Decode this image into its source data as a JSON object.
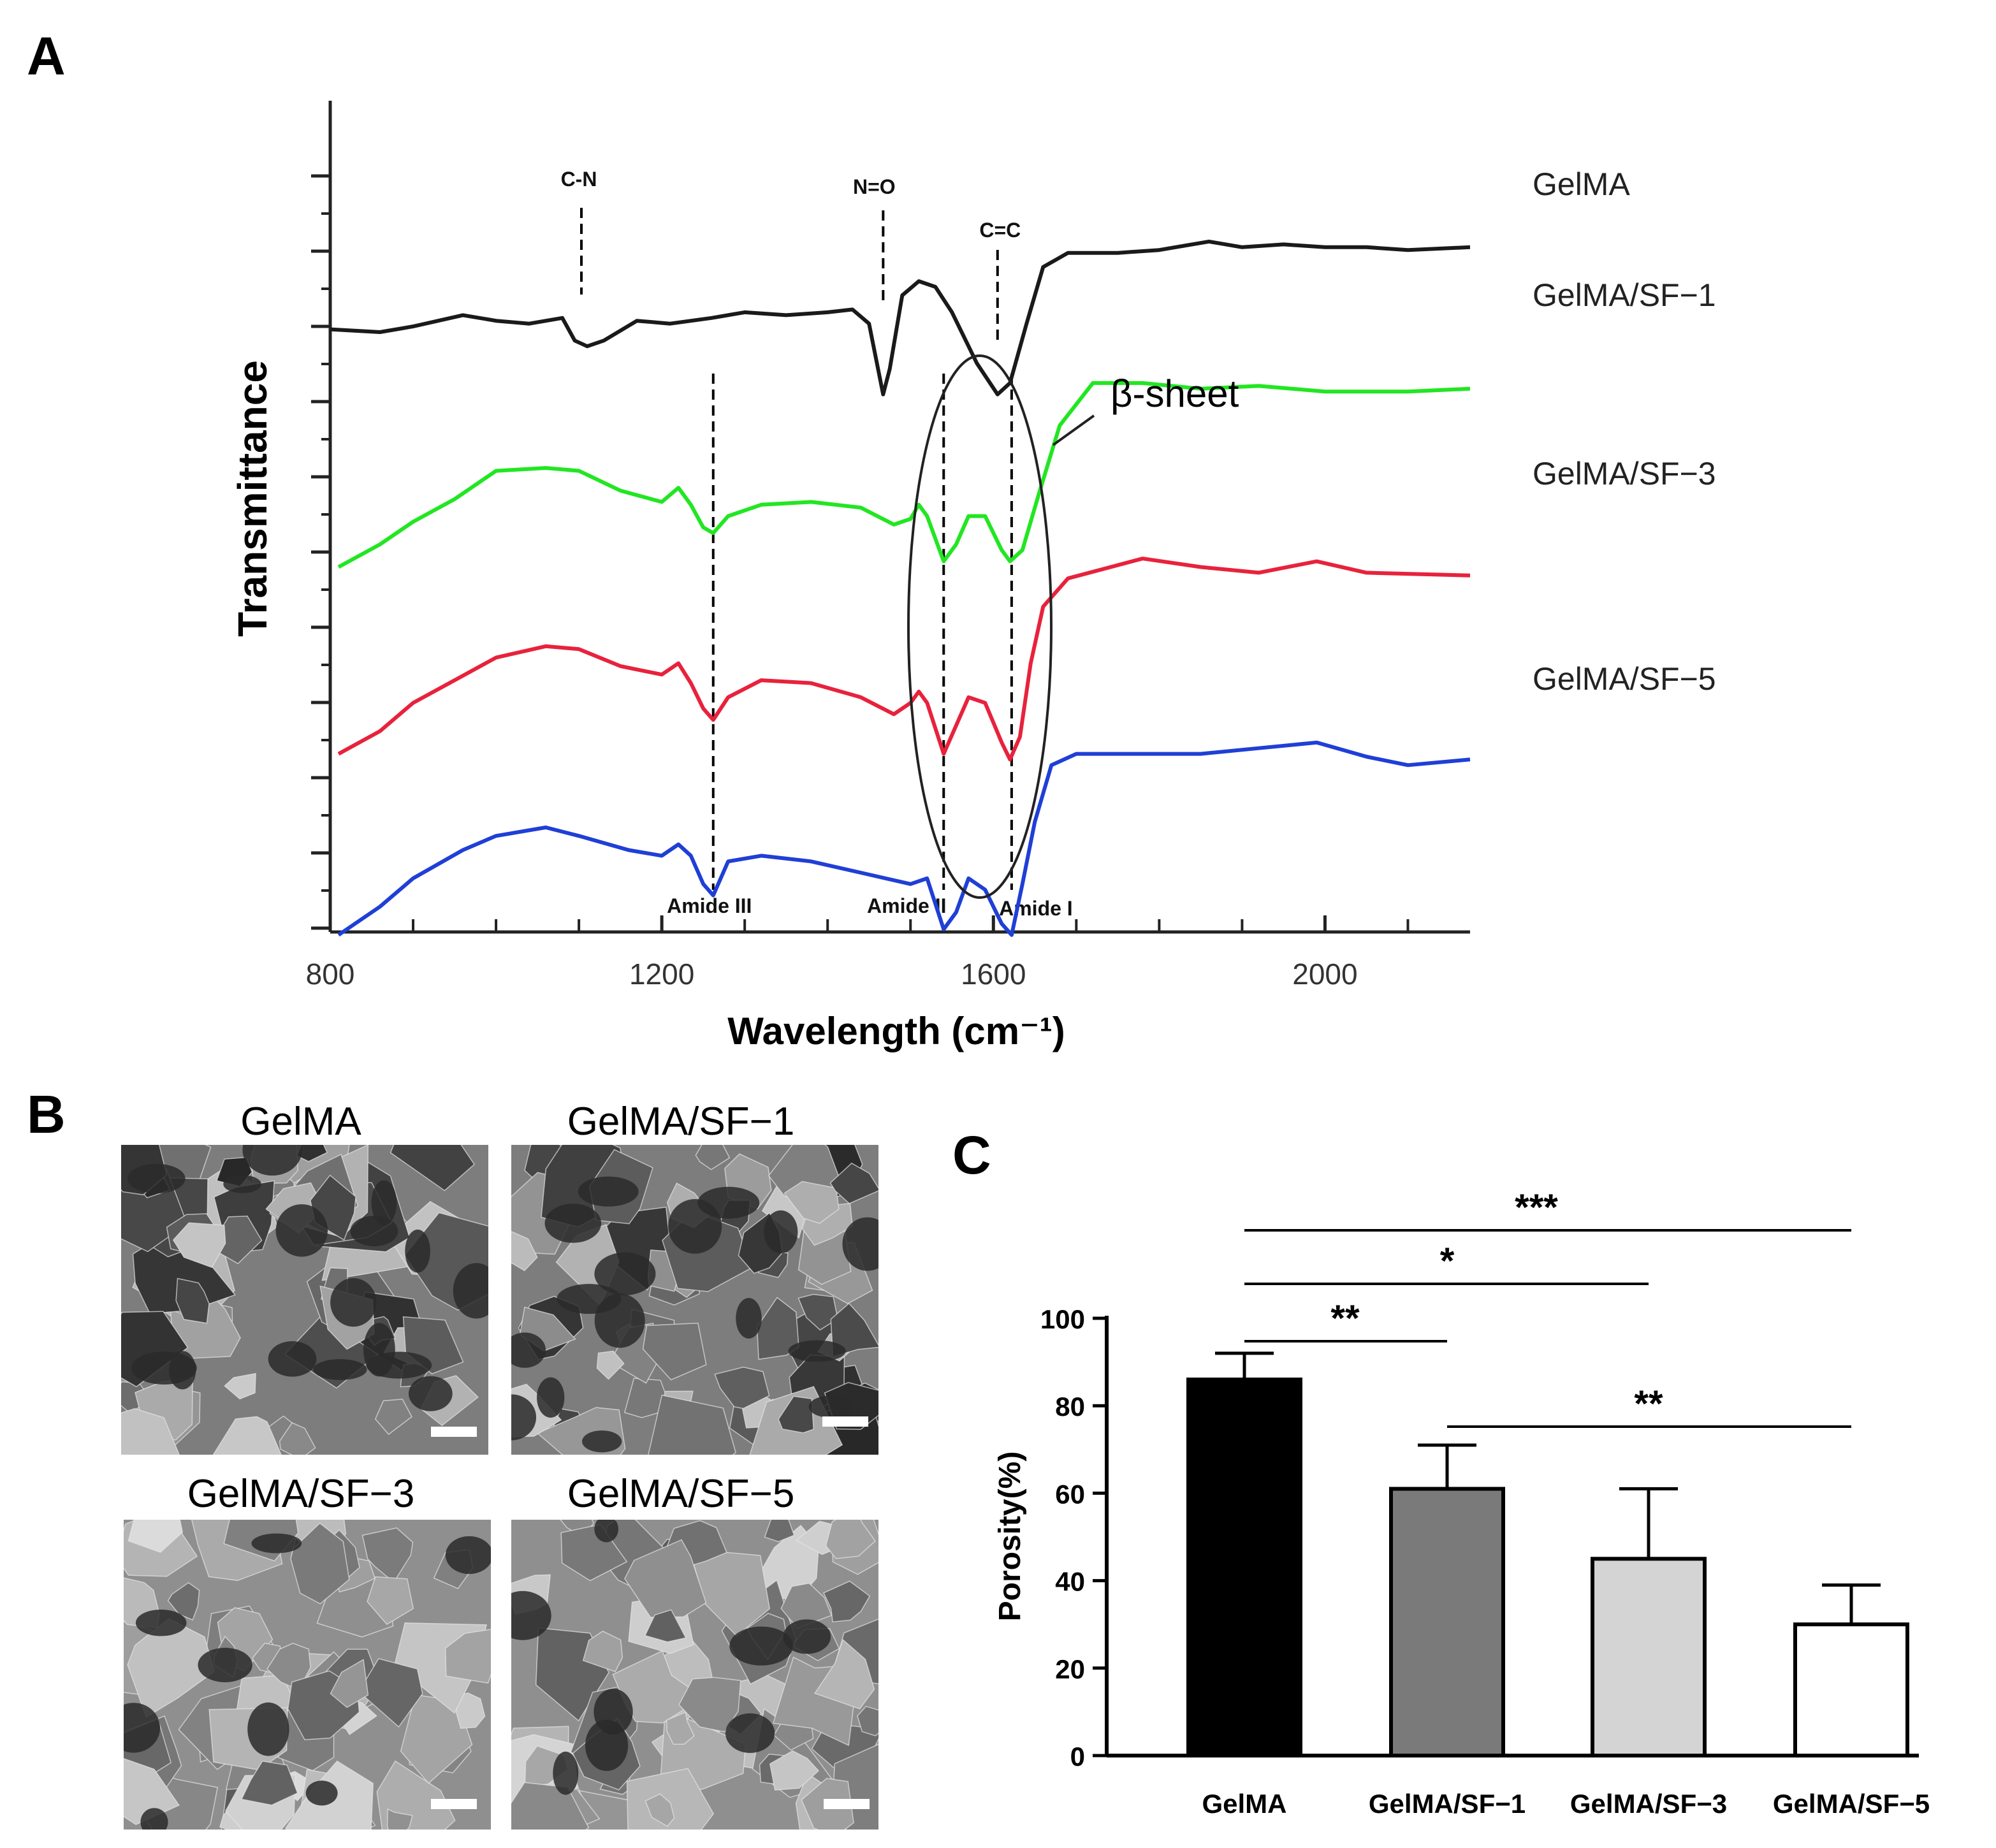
{
  "panels": {
    "A": "A",
    "B": "B",
    "C": "C"
  },
  "chart_data": [
    {
      "type": "line",
      "panel": "A",
      "xlabel": "Wavelength (cm⁻¹)",
      "ylabel": "Transmittance",
      "xlim": [
        800,
        2175
      ],
      "xticks": [
        800,
        1200,
        1600,
        2000
      ],
      "yticks_labeled": false,
      "legend_position": "right",
      "series": [
        {
          "name": "GelMA",
          "color": "#1a1a1a",
          "points": [
            [
              800,
              0.74
            ],
            [
              860,
              0.75
            ],
            [
              900,
              0.73
            ],
            [
              960,
              0.69
            ],
            [
              1000,
              0.71
            ],
            [
              1040,
              0.72
            ],
            [
              1080,
              0.7
            ],
            [
              1095,
              0.78
            ],
            [
              1110,
              0.8
            ],
            [
              1130,
              0.78
            ],
            [
              1170,
              0.71
            ],
            [
              1210,
              0.72
            ],
            [
              1260,
              0.7
            ],
            [
              1300,
              0.68
            ],
            [
              1350,
              0.69
            ],
            [
              1400,
              0.68
            ],
            [
              1430,
              0.67
            ],
            [
              1450,
              0.72
            ],
            [
              1467,
              0.97
            ],
            [
              1475,
              0.88
            ],
            [
              1490,
              0.62
            ],
            [
              1510,
              0.57
            ],
            [
              1530,
              0.59
            ],
            [
              1550,
              0.68
            ],
            [
              1580,
              0.86
            ],
            [
              1605,
              0.97
            ],
            [
              1620,
              0.93
            ],
            [
              1640,
              0.72
            ],
            [
              1660,
              0.52
            ],
            [
              1690,
              0.47
            ],
            [
              1750,
              0.47
            ],
            [
              1800,
              0.46
            ],
            [
              1860,
              0.43
            ],
            [
              1900,
              0.45
            ],
            [
              1950,
              0.44
            ],
            [
              2000,
              0.45
            ],
            [
              2050,
              0.45
            ],
            [
              2100,
              0.46
            ],
            [
              2175,
              0.45
            ]
          ]
        },
        {
          "name": "GelMA/SF−1",
          "color": "#22e622",
          "points": [
            [
              810,
              1.58
            ],
            [
              860,
              1.5
            ],
            [
              900,
              1.42
            ],
            [
              950,
              1.34
            ],
            [
              1000,
              1.24
            ],
            [
              1060,
              1.23
            ],
            [
              1100,
              1.24
            ],
            [
              1150,
              1.31
            ],
            [
              1200,
              1.35
            ],
            [
              1220,
              1.3
            ],
            [
              1235,
              1.36
            ],
            [
              1250,
              1.44
            ],
            [
              1262,
              1.46
            ],
            [
              1280,
              1.4
            ],
            [
              1320,
              1.36
            ],
            [
              1380,
              1.35
            ],
            [
              1440,
              1.37
            ],
            [
              1480,
              1.43
            ],
            [
              1500,
              1.41
            ],
            [
              1510,
              1.36
            ],
            [
              1520,
              1.4
            ],
            [
              1540,
              1.56
            ],
            [
              1555,
              1.5
            ],
            [
              1570,
              1.4
            ],
            [
              1590,
              1.4
            ],
            [
              1610,
              1.52
            ],
            [
              1620,
              1.56
            ],
            [
              1635,
              1.52
            ],
            [
              1655,
              1.32
            ],
            [
              1680,
              1.08
            ],
            [
              1720,
              0.93
            ],
            [
              1780,
              0.93
            ],
            [
              1850,
              0.95
            ],
            [
              1920,
              0.94
            ],
            [
              2000,
              0.96
            ],
            [
              2100,
              0.96
            ],
            [
              2175,
              0.95
            ]
          ]
        },
        {
          "name": "GelMA/SF−3",
          "color": "#e8223c",
          "points": [
            [
              810,
              2.24
            ],
            [
              860,
              2.16
            ],
            [
              900,
              2.06
            ],
            [
              950,
              1.98
            ],
            [
              1000,
              1.9
            ],
            [
              1060,
              1.86
            ],
            [
              1100,
              1.87
            ],
            [
              1150,
              1.93
            ],
            [
              1200,
              1.96
            ],
            [
              1220,
              1.92
            ],
            [
              1235,
              1.99
            ],
            [
              1250,
              2.08
            ],
            [
              1262,
              2.12
            ],
            [
              1280,
              2.04
            ],
            [
              1320,
              1.98
            ],
            [
              1380,
              1.99
            ],
            [
              1440,
              2.04
            ],
            [
              1480,
              2.1
            ],
            [
              1500,
              2.06
            ],
            [
              1510,
              2.02
            ],
            [
              1520,
              2.06
            ],
            [
              1540,
              2.24
            ],
            [
              1555,
              2.14
            ],
            [
              1570,
              2.04
            ],
            [
              1590,
              2.06
            ],
            [
              1610,
              2.2
            ],
            [
              1620,
              2.26
            ],
            [
              1632,
              2.18
            ],
            [
              1645,
              1.92
            ],
            [
              1660,
              1.72
            ],
            [
              1690,
              1.62
            ],
            [
              1780,
              1.55
            ],
            [
              1850,
              1.58
            ],
            [
              1920,
              1.6
            ],
            [
              1990,
              1.56
            ],
            [
              2050,
              1.6
            ],
            [
              2175,
              1.61
            ]
          ]
        },
        {
          "name": "GelMA/SF−5",
          "color": "#1f3fd6",
          "points": [
            [
              810,
              2.88
            ],
            [
              860,
              2.78
            ],
            [
              900,
              2.68
            ],
            [
              960,
              2.58
            ],
            [
              1000,
              2.53
            ],
            [
              1060,
              2.5
            ],
            [
              1100,
              2.53
            ],
            [
              1160,
              2.58
            ],
            [
              1200,
              2.6
            ],
            [
              1220,
              2.56
            ],
            [
              1235,
              2.6
            ],
            [
              1250,
              2.7
            ],
            [
              1262,
              2.74
            ],
            [
              1280,
              2.62
            ],
            [
              1320,
              2.6
            ],
            [
              1380,
              2.62
            ],
            [
              1440,
              2.66
            ],
            [
              1500,
              2.7
            ],
            [
              1520,
              2.68
            ],
            [
              1540,
              2.86
            ],
            [
              1555,
              2.8
            ],
            [
              1570,
              2.68
            ],
            [
              1590,
              2.72
            ],
            [
              1610,
              2.84
            ],
            [
              1622,
              2.88
            ],
            [
              1635,
              2.7
            ],
            [
              1650,
              2.48
            ],
            [
              1670,
              2.28
            ],
            [
              1700,
              2.24
            ],
            [
              1780,
              2.24
            ],
            [
              1850,
              2.24
            ],
            [
              1920,
              2.22
            ],
            [
              1990,
              2.2
            ],
            [
              2050,
              2.25
            ],
            [
              2100,
              2.28
            ],
            [
              2175,
              2.26
            ]
          ]
        }
      ],
      "annotations": [
        {
          "label": "C-N",
          "x": 1103
        },
        {
          "label": "N=O",
          "x": 1467
        },
        {
          "label": "C=C",
          "x": 1605
        },
        {
          "label": "Amide III",
          "x": 1262
        },
        {
          "label": "Amide II",
          "x": 1540
        },
        {
          "label": "Amide I",
          "x": 1622
        },
        {
          "label": "β-sheet"
        }
      ]
    },
    {
      "type": "bar",
      "panel": "C",
      "ylabel": "Porosity(%)",
      "ylim": [
        0,
        100
      ],
      "yticks": [
        0,
        20,
        40,
        60,
        80,
        100
      ],
      "categories": [
        "GelMA",
        "GelMA/SF−1",
        "GelMA/SF−3",
        "GelMA/SF−5"
      ],
      "values": [
        86,
        61,
        45,
        30
      ],
      "errors": [
        6,
        10,
        16,
        9
      ],
      "colors": [
        "#000000",
        "#7a7a7a",
        "#d4d4d4",
        "#ffffff"
      ],
      "significance": [
        {
          "from": 0,
          "to": 3,
          "label": "***"
        },
        {
          "from": 0,
          "to": 2,
          "label": "*"
        },
        {
          "from": 0,
          "to": 1,
          "label": "**"
        },
        {
          "from": 1,
          "to": 3,
          "label": "**"
        }
      ]
    }
  ],
  "sem": {
    "titles": [
      "GelMA",
      "GelMA/SF−1",
      "GelMA/SF−3",
      "GelMA/SF−5"
    ]
  }
}
